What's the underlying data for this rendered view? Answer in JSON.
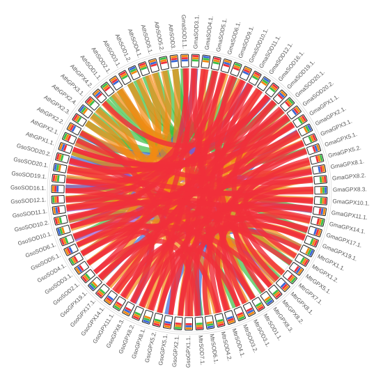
{
  "diagram": {
    "type": "circos-chord",
    "palette": {
      "red": "#f0303a",
      "orange": "#f28a12",
      "green": "#3cbf45",
      "blue": "#3a68d8",
      "purple": "#9a4fd0",
      "box_stroke": "#222222",
      "label": "#555555"
    },
    "genes": [
      "GmaSOD1.1.",
      "GmaSOD3.1.",
      "GmaSOD4.1.",
      "GmaSOD5.1.",
      "GmaSOD6.1.",
      "GmaSOD9.1.",
      "GmaSOD10.1.",
      "GmaSOD11.1.",
      "GmaSOD12.1.",
      "GmaSOD16.1.",
      "GmaSOD19.1.",
      "GmaSOD20.1.",
      "GmaSOD20.2.",
      "GmaGPX1.1.",
      "GmaGPX2.1.",
      "GmaGPX3.1.",
      "GmaGPX5.1.",
      "GmaGPX5.2.",
      "GmaGPX8.1.",
      "GmaGPX8.2.",
      "GmaGPX8.3.",
      "GmaGPX10.1.",
      "GmaGPX11.1.",
      "GmaGPX14.1.",
      "GmaGPX17.1.",
      "GmaGPX19.1.",
      "MtrGPX1.1.",
      "MtrGPX1.2.",
      "MtrGPX5.1.",
      "MtrGPX7.1.",
      "MtrGPX8.1.",
      "MtrGPX8.2.",
      "MtrGPX8.3.",
      "MtrSOD1.1.",
      "MtrSOD3.1.",
      "MtrSOD3.2.",
      "MtrSOD4.1.",
      "MtrSOD4.2.",
      "MtrSOD6.1.",
      "MtrSOD7.1.",
      "GsoGPX1.1.",
      "GsoGPX2.1.",
      "GsoGPX5.1.",
      "GsoGPX5.2.",
      "GsoGPX8.1.",
      "GsoGPX8.2.",
      "GsoGPX8.3.",
      "GsoGPX11.1.",
      "GsoGPX14.1.",
      "GsoGPX17.1.",
      "GsoGPX19.1.",
      "GsoSOD2.1.",
      "GsoSOD3.1.",
      "GsoSOD4.1.",
      "GsoSOD5.1.",
      "GsoSOD6.1.",
      "GsoSOD10.1.",
      "GsoSOD10.2.",
      "GsoSOD11.1.",
      "GsoSOD12.1.",
      "GsoSOD16.1.",
      "GsoSOD19.1.",
      "GsoSOD20.1.",
      "GsoSOD20.2.",
      "AthGPX1.1.",
      "AthGPX2.1.",
      "AthGPX2.2.",
      "AthGPX2.3.",
      "AthGPX2.4.",
      "AthGPX3.1.",
      "AthGPX4.2.",
      "AthSOD1.1.",
      "AthSOD2.1.",
      "AthSOD3.1.",
      "AthSOD1.2.",
      "AthSOD4.1.",
      "AthSOD5.1.",
      "AthSOD5.2.",
      "AthSOD3."
    ],
    "links": [
      {
        "from": 0,
        "to": 40,
        "color": "red"
      },
      {
        "from": 0,
        "to": 51,
        "color": "red"
      },
      {
        "from": 1,
        "to": 47,
        "color": "red"
      },
      {
        "from": 1,
        "to": 33,
        "color": "red"
      },
      {
        "from": 2,
        "to": 60,
        "color": "red"
      },
      {
        "from": 2,
        "to": 36,
        "color": "red"
      },
      {
        "from": 3,
        "to": 58,
        "color": "red"
      },
      {
        "from": 3,
        "to": 44,
        "color": "red"
      },
      {
        "from": 4,
        "to": 39,
        "color": "red"
      },
      {
        "from": 4,
        "to": 56,
        "color": "red"
      },
      {
        "from": 5,
        "to": 45,
        "color": "red"
      },
      {
        "from": 5,
        "to": 31,
        "color": "red"
      },
      {
        "from": 6,
        "to": 62,
        "color": "red"
      },
      {
        "from": 6,
        "to": 37,
        "color": "red"
      },
      {
        "from": 7,
        "to": 57,
        "color": "red"
      },
      {
        "from": 7,
        "to": 34,
        "color": "red"
      },
      {
        "from": 8,
        "to": 42,
        "color": "red"
      },
      {
        "from": 8,
        "to": 59,
        "color": "red"
      },
      {
        "from": 9,
        "to": 48,
        "color": "red"
      },
      {
        "from": 9,
        "to": 61,
        "color": "red"
      },
      {
        "from": 10,
        "to": 52,
        "color": "red"
      },
      {
        "from": 10,
        "to": 29,
        "color": "red"
      },
      {
        "from": 11,
        "to": 63,
        "color": "red"
      },
      {
        "from": 11,
        "to": 49,
        "color": "red"
      },
      {
        "from": 12,
        "to": 54,
        "color": "red"
      },
      {
        "from": 12,
        "to": 41,
        "color": "red"
      },
      {
        "from": 13,
        "to": 43,
        "color": "red"
      },
      {
        "from": 13,
        "to": 64,
        "color": "red"
      },
      {
        "from": 14,
        "to": 46,
        "color": "red"
      },
      {
        "from": 14,
        "to": 55,
        "color": "red"
      },
      {
        "from": 15,
        "to": 53,
        "color": "red"
      },
      {
        "from": 15,
        "to": 35,
        "color": "red"
      },
      {
        "from": 16,
        "to": 50,
        "color": "red"
      },
      {
        "from": 16,
        "to": 38,
        "color": "red"
      },
      {
        "from": 17,
        "to": 40,
        "color": "red"
      },
      {
        "from": 17,
        "to": 27,
        "color": "red"
      },
      {
        "from": 18,
        "to": 57,
        "color": "red"
      },
      {
        "from": 18,
        "to": 32,
        "color": "red"
      },
      {
        "from": 19,
        "to": 44,
        "color": "red"
      },
      {
        "from": 19,
        "to": 65,
        "color": "red"
      },
      {
        "from": 20,
        "to": 59,
        "color": "red"
      },
      {
        "from": 20,
        "to": 30,
        "color": "red"
      },
      {
        "from": 21,
        "to": 47,
        "color": "red"
      },
      {
        "from": 21,
        "to": 62,
        "color": "red"
      },
      {
        "from": 22,
        "to": 52,
        "color": "red"
      },
      {
        "from": 22,
        "to": 36,
        "color": "red"
      },
      {
        "from": 23,
        "to": 41,
        "color": "red"
      },
      {
        "from": 23,
        "to": 58,
        "color": "red"
      },
      {
        "from": 24,
        "to": 50,
        "color": "red"
      },
      {
        "from": 24,
        "to": 61,
        "color": "red"
      },
      {
        "from": 25,
        "to": 43,
        "color": "red"
      },
      {
        "from": 25,
        "to": 56,
        "color": "red"
      },
      {
        "from": 26,
        "to": 48,
        "color": "red"
      },
      {
        "from": 28,
        "to": 63,
        "color": "red"
      },
      {
        "from": 31,
        "to": 54,
        "color": "red"
      },
      {
        "from": 33,
        "to": 60,
        "color": "red"
      },
      {
        "from": 35,
        "to": 45,
        "color": "red"
      },
      {
        "from": 37,
        "to": 55,
        "color": "red"
      },
      {
        "from": 39,
        "to": 51,
        "color": "red"
      },
      {
        "from": 42,
        "to": 66,
        "color": "red"
      },
      {
        "from": 46,
        "to": 53,
        "color": "red"
      },
      {
        "from": 64,
        "to": 12,
        "color": "red"
      },
      {
        "from": 70,
        "to": 9,
        "color": "red"
      },
      {
        "from": 2,
        "to": 30,
        "color": "orange"
      },
      {
        "from": 4,
        "to": 45,
        "color": "orange"
      },
      {
        "from": 6,
        "to": 52,
        "color": "orange"
      },
      {
        "from": 8,
        "to": 33,
        "color": "orange"
      },
      {
        "from": 11,
        "to": 41,
        "color": "orange"
      },
      {
        "from": 13,
        "to": 56,
        "color": "orange"
      },
      {
        "from": 15,
        "to": 61,
        "color": "orange"
      },
      {
        "from": 17,
        "to": 49,
        "color": "orange"
      },
      {
        "from": 19,
        "to": 36,
        "color": "orange"
      },
      {
        "from": 21,
        "to": 58,
        "color": "orange"
      },
      {
        "from": 23,
        "to": 64,
        "color": "orange"
      },
      {
        "from": 25,
        "to": 38,
        "color": "orange"
      },
      {
        "from": 27,
        "to": 54,
        "color": "orange"
      },
      {
        "from": 29,
        "to": 47,
        "color": "orange"
      },
      {
        "from": 31,
        "to": 62,
        "color": "orange"
      },
      {
        "from": 34,
        "to": 67,
        "color": "orange"
      },
      {
        "from": 37,
        "to": 69,
        "color": "orange"
      },
      {
        "from": 40,
        "to": 72,
        "color": "orange"
      },
      {
        "from": 43,
        "to": 74,
        "color": "orange"
      },
      {
        "from": 44,
        "to": 76,
        "color": "orange"
      },
      {
        "from": 48,
        "to": 78,
        "color": "orange"
      },
      {
        "from": 50,
        "to": 73,
        "color": "orange"
      },
      {
        "from": 53,
        "to": 70,
        "color": "orange"
      },
      {
        "from": 57,
        "to": 68,
        "color": "orange"
      },
      {
        "from": 59,
        "to": 75,
        "color": "orange"
      },
      {
        "from": 62,
        "to": 77,
        "color": "orange"
      },
      {
        "from": 65,
        "to": 20,
        "color": "orange"
      },
      {
        "from": 66,
        "to": 14,
        "color": "orange"
      },
      {
        "from": 71,
        "to": 18,
        "color": "orange"
      },
      {
        "from": 72,
        "to": 26,
        "color": "orange"
      },
      {
        "from": 0,
        "to": 69,
        "color": "green"
      },
      {
        "from": 3,
        "to": 73,
        "color": "green"
      },
      {
        "from": 5,
        "to": 71,
        "color": "green"
      },
      {
        "from": 7,
        "to": 76,
        "color": "green"
      },
      {
        "from": 10,
        "to": 67,
        "color": "green"
      },
      {
        "from": 12,
        "to": 74,
        "color": "green"
      },
      {
        "from": 16,
        "to": 78,
        "color": "green"
      },
      {
        "from": 22,
        "to": 70,
        "color": "green"
      },
      {
        "from": 24,
        "to": 75,
        "color": "green"
      },
      {
        "from": 28,
        "to": 77,
        "color": "green"
      },
      {
        "from": 32,
        "to": 68,
        "color": "green"
      },
      {
        "from": 35,
        "to": 72,
        "color": "green"
      },
      {
        "from": 39,
        "to": 66,
        "color": "green"
      },
      {
        "from": 55,
        "to": 65,
        "color": "green"
      },
      {
        "from": 60,
        "to": 64,
        "color": "green"
      },
      {
        "from": 30,
        "to": 59,
        "color": "green"
      },
      {
        "from": 1,
        "to": 63,
        "color": "blue"
      },
      {
        "from": 9,
        "to": 66,
        "color": "blue"
      },
      {
        "from": 14,
        "to": 39,
        "color": "blue"
      },
      {
        "from": 26,
        "to": 42,
        "color": "blue"
      },
      {
        "from": 33,
        "to": 57,
        "color": "blue"
      },
      {
        "from": 46,
        "to": 61,
        "color": "blue"
      },
      {
        "from": 50,
        "to": 11,
        "color": "blue"
      },
      {
        "from": 53,
        "to": 65,
        "color": "purple"
      },
      {
        "from": 55,
        "to": 22,
        "color": "purple"
      },
      {
        "from": 58,
        "to": 30,
        "color": "purple"
      },
      {
        "from": 60,
        "to": 7,
        "color": "purple"
      },
      {
        "from": 63,
        "to": 18,
        "color": "purple"
      }
    ],
    "box_stripes": [
      [
        "orange",
        "red",
        "blue"
      ],
      [
        "red",
        "orange",
        "green"
      ],
      [
        "blue",
        "green",
        "orange"
      ],
      [
        "red",
        "orange",
        "green"
      ],
      [
        "orange",
        "blue",
        "red"
      ],
      [
        "green",
        "orange",
        "red"
      ]
    ]
  }
}
